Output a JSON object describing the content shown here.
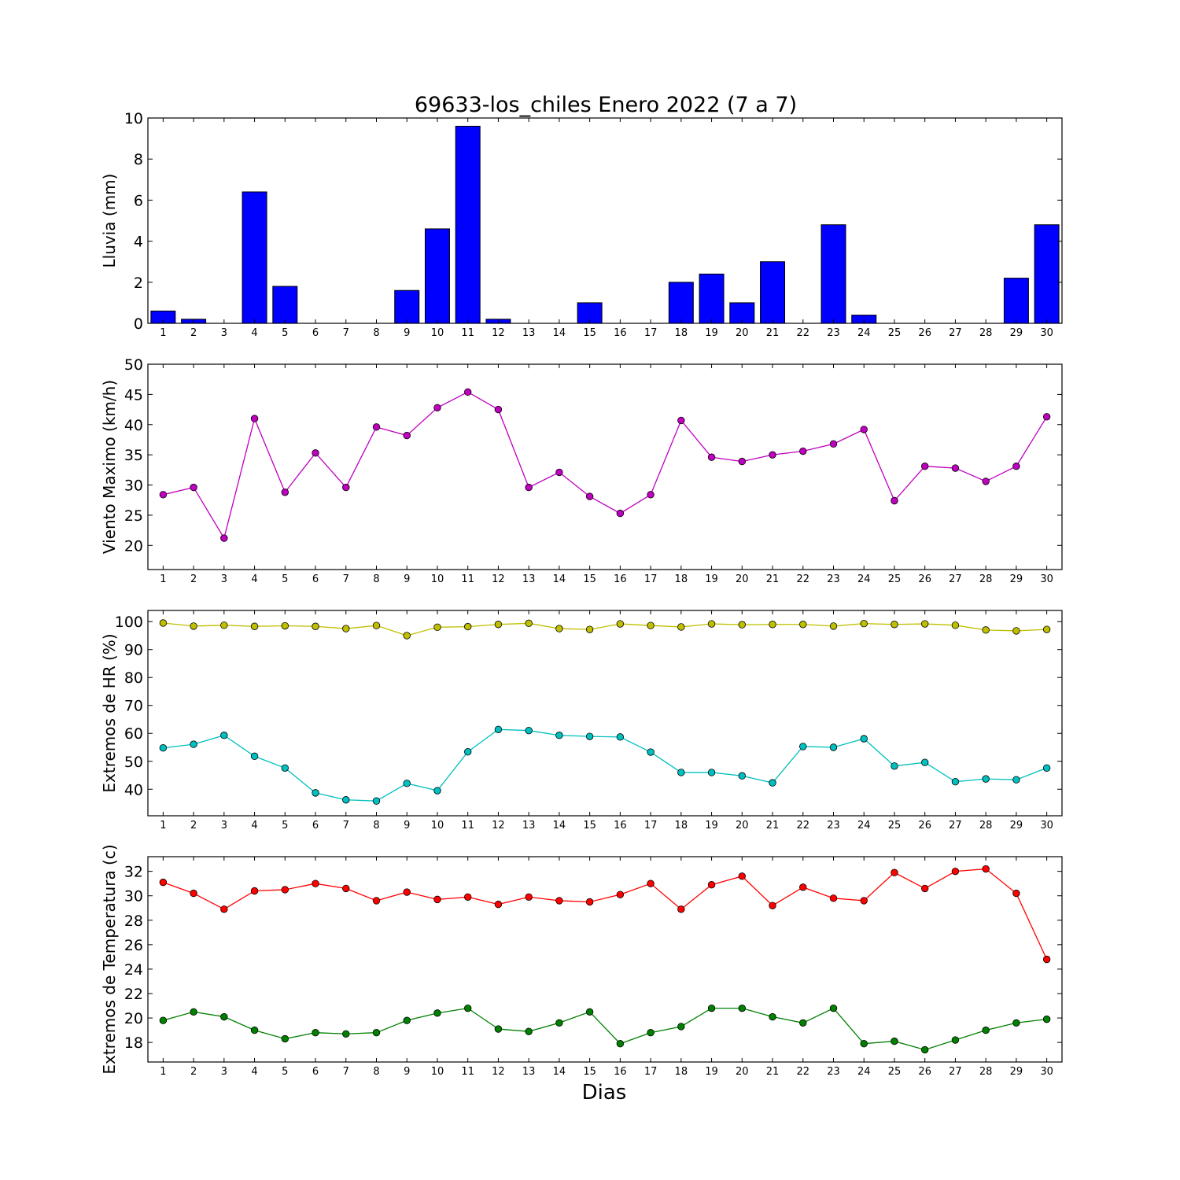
{
  "title": "69633-los_chiles Enero 2022  (7 a 7)",
  "xlabel": "Dias",
  "colors": {
    "lluvia": "#0000ff",
    "viento": "#bf00bf",
    "hr_max": "#bfbf00",
    "hr_min": "#00bfbf",
    "temp_max": "#ff0000",
    "temp_min": "#008000"
  },
  "chart_data": [
    {
      "type": "bar",
      "ylabel": "Lluvia (mm)",
      "ylim": [
        0,
        10
      ],
      "yticks": [
        0,
        2,
        4,
        6,
        8,
        10
      ],
      "categories": [
        1,
        2,
        3,
        4,
        5,
        6,
        7,
        8,
        9,
        10,
        11,
        12,
        13,
        14,
        15,
        16,
        17,
        18,
        19,
        20,
        21,
        22,
        23,
        24,
        25,
        26,
        27,
        28,
        29,
        30
      ],
      "series": [
        {
          "color": "#0000ff",
          "values": [
            0.6,
            0.2,
            0,
            6.4,
            1.8,
            0,
            0,
            0,
            1.6,
            4.6,
            9.6,
            0.2,
            0,
            0,
            1.0,
            0,
            0,
            2.0,
            2.4,
            1.0,
            3.0,
            0,
            4.8,
            0.4,
            0,
            0,
            0,
            0,
            2.2,
            4.8
          ]
        }
      ]
    },
    {
      "type": "line",
      "ylabel": "Viento Maximo (km/h)",
      "ylim": [
        16,
        50
      ],
      "yticks": [
        20,
        25,
        30,
        35,
        40,
        45,
        50
      ],
      "x": [
        1,
        2,
        3,
        4,
        5,
        6,
        7,
        8,
        9,
        10,
        11,
        12,
        13,
        14,
        15,
        16,
        17,
        18,
        19,
        20,
        21,
        22,
        23,
        24,
        25,
        26,
        27,
        28,
        29,
        30
      ],
      "series": [
        {
          "color": "#bf00bf",
          "values": [
            28.4,
            29.6,
            21.2,
            41.0,
            28.8,
            35.3,
            29.6,
            39.6,
            38.2,
            42.8,
            45.4,
            42.5,
            29.6,
            32.1,
            28.1,
            25.3,
            28.4,
            40.7,
            34.6,
            33.9,
            35.0,
            35.6,
            36.8,
            39.2,
            27.4,
            33.1,
            32.8,
            30.6,
            33.1,
            41.3
          ]
        }
      ]
    },
    {
      "type": "line",
      "ylabel": "Extremos de HR (%)",
      "ylim": [
        30.5,
        104
      ],
      "yticks": [
        40,
        50,
        60,
        70,
        80,
        90,
        100
      ],
      "x": [
        1,
        2,
        3,
        4,
        5,
        6,
        7,
        8,
        9,
        10,
        11,
        12,
        13,
        14,
        15,
        16,
        17,
        18,
        19,
        20,
        21,
        22,
        23,
        24,
        25,
        26,
        27,
        28,
        29,
        30
      ],
      "series": [
        {
          "color": "#bfbf00",
          "values": [
            99.5,
            98.4,
            98.7,
            98.3,
            98.5,
            98.3,
            97.5,
            98.6,
            95.0,
            98.0,
            98.2,
            99.0,
            99.4,
            97.5,
            97.2,
            99.2,
            98.6,
            98.1,
            99.2,
            98.9,
            99.0,
            99.0,
            98.4,
            99.3,
            99.0,
            99.2,
            98.7,
            97.0,
            96.7,
            97.2
          ]
        },
        {
          "color": "#00bfbf",
          "values": [
            54.8,
            56.1,
            59.3,
            51.8,
            47.6,
            38.7,
            36.2,
            35.8,
            42.1,
            39.5,
            53.4,
            61.4,
            61.0,
            59.3,
            58.9,
            58.7,
            53.3,
            46.0,
            46.0,
            44.8,
            42.3,
            55.3,
            55.0,
            58.1,
            48.3,
            49.6,
            42.7,
            43.7,
            43.4,
            47.6
          ]
        }
      ]
    },
    {
      "type": "line",
      "ylabel": "Extremos de Temperatura (c)",
      "ylim": [
        16.4,
        33.2
      ],
      "yticks": [
        18,
        20,
        22,
        24,
        26,
        28,
        30,
        32
      ],
      "x": [
        1,
        2,
        3,
        4,
        5,
        6,
        7,
        8,
        9,
        10,
        11,
        12,
        13,
        14,
        15,
        16,
        17,
        18,
        19,
        20,
        21,
        22,
        23,
        24,
        25,
        26,
        27,
        28,
        29,
        30
      ],
      "series": [
        {
          "color": "#ff0000",
          "values": [
            31.1,
            30.2,
            28.9,
            30.4,
            30.5,
            31.0,
            30.6,
            29.6,
            30.3,
            29.7,
            29.9,
            29.3,
            29.9,
            29.6,
            29.5,
            30.1,
            31.0,
            28.9,
            30.9,
            31.6,
            29.2,
            30.7,
            29.8,
            29.6,
            31.9,
            30.6,
            32.0,
            32.2,
            30.2,
            24.8
          ]
        },
        {
          "color": "#008000",
          "values": [
            19.8,
            20.5,
            20.1,
            19.0,
            18.3,
            18.8,
            18.7,
            18.8,
            19.8,
            20.4,
            20.8,
            19.1,
            18.9,
            19.6,
            20.5,
            17.9,
            18.8,
            19.3,
            20.8,
            20.8,
            20.1,
            19.6,
            20.8,
            17.9,
            18.1,
            17.4,
            18.2,
            19.0,
            19.6,
            19.9
          ]
        }
      ]
    }
  ]
}
